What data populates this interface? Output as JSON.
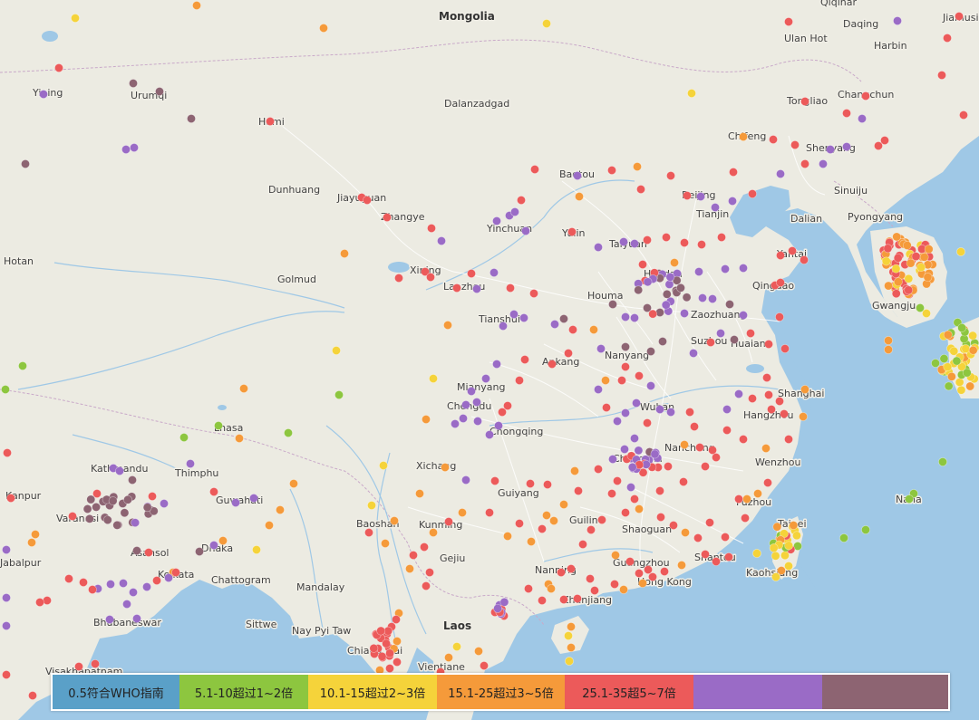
{
  "colors": {
    "who": "#5aa0c8",
    "c5_10": "#8dc63f",
    "c10_15": "#f5d33a",
    "c15_25": "#f59a3a",
    "c25_35": "#ec5a5a",
    "c35_50": "#9a6bc6",
    "c50p": "#8d6472",
    "land": "#ecebe2",
    "water": "#9fc8e6"
  },
  "legend": [
    {
      "label": "0.5符合WHO指南",
      "color": "#5aa0c8"
    },
    {
      "label": "5.1-10超过1~2倍",
      "color": "#8dc63f"
    },
    {
      "label": "10.1-15超过2~3倍",
      "color": "#f5d33a"
    },
    {
      "label": "15.1-25超过3~5倍",
      "color": "#f59a3a"
    },
    {
      "label": "25.1-35超5~7倍",
      "color": "#ec5a5a"
    },
    {
      "label": "",
      "color": "#9a6bc6"
    },
    {
      "label": "",
      "color": "#8d6472"
    }
  ],
  "places": [
    {
      "name": "Mongolia",
      "bold": true
    },
    {
      "name": "Ulan Hot"
    },
    {
      "name": "Dalanzadgad"
    },
    {
      "name": "Dunhuang"
    },
    {
      "name": "Golmud"
    },
    {
      "name": "Houma"
    },
    {
      "name": "Pyongyang"
    },
    {
      "name": "Chongqing"
    },
    {
      "name": "Guiyang"
    },
    {
      "name": "Shaoguan"
    },
    {
      "name": "Chattogram"
    },
    {
      "name": "Mandalay"
    },
    {
      "name": "Nay Pyi Taw"
    },
    {
      "name": "Sittwe"
    },
    {
      "name": "Laos",
      "bold": true
    },
    {
      "name": "Lanzhou"
    },
    {
      "name": "Chengdu"
    },
    {
      "name": "Thimphu"
    },
    {
      "name": "Kathmandu"
    },
    {
      "name": "Wenzhou"
    },
    {
      "name": "Kaohsiung"
    },
    {
      "name": "Yinchuan"
    },
    {
      "name": "Baotou"
    },
    {
      "name": "Xining"
    },
    {
      "name": "Zhangye"
    },
    {
      "name": "Jiayuguan"
    },
    {
      "name": "Hami"
    },
    {
      "name": "Urumqi"
    },
    {
      "name": "Yining"
    },
    {
      "name": "Hotan"
    },
    {
      "name": "Lhasa"
    },
    {
      "name": "Beijing"
    },
    {
      "name": "Tianjin"
    },
    {
      "name": "Dalian"
    },
    {
      "name": "Shenyang"
    },
    {
      "name": "Changchun"
    },
    {
      "name": "Harbin"
    },
    {
      "name": "Chifeng"
    },
    {
      "name": "Sinuiju"
    },
    {
      "name": "Handan"
    },
    {
      "name": "Qingdao"
    },
    {
      "name": "Zaozhuang"
    },
    {
      "name": "Suzhou"
    },
    {
      "name": "Huaian"
    },
    {
      "name": "Nanyang"
    },
    {
      "name": "Ankang"
    },
    {
      "name": "Tianshui"
    },
    {
      "name": "Mianyang"
    },
    {
      "name": "Wuhan"
    },
    {
      "name": "Hangzhou"
    },
    {
      "name": "Shanghai"
    },
    {
      "name": "Nanchang"
    },
    {
      "name": "Changsha"
    },
    {
      "name": "Fuzhou"
    },
    {
      "name": "Taipei"
    },
    {
      "name": "Guilin"
    },
    {
      "name": "Nanning"
    },
    {
      "name": "Guangzhou"
    },
    {
      "name": "Hong Kong"
    },
    {
      "name": "Shantou"
    },
    {
      "name": "Zhanjiang"
    },
    {
      "name": "Baoshan"
    },
    {
      "name": "Kunming"
    },
    {
      "name": "Gejiu"
    },
    {
      "name": "Xichang"
    },
    {
      "name": "Guwahati"
    },
    {
      "name": "Kolkata"
    },
    {
      "name": "Bhubaneswar"
    },
    {
      "name": "Asansol"
    },
    {
      "name": "Dhaka"
    },
    {
      "name": "Varanasi"
    },
    {
      "name": "Kanpur"
    },
    {
      "name": "Jabalpur"
    },
    {
      "name": "Visakhapatnam"
    },
    {
      "name": "Chiang Mai"
    },
    {
      "name": "Vientiane"
    },
    {
      "name": "Gwangju"
    },
    {
      "name": "Naha"
    },
    {
      "name": "Taiyuan"
    },
    {
      "name": "Yulin"
    },
    {
      "name": "Yantai"
    },
    {
      "name": "Qiqihar"
    },
    {
      "name": "Daqing"
    },
    {
      "name": "Jiamusi"
    },
    {
      "name": "Tongliao"
    }
  ]
}
